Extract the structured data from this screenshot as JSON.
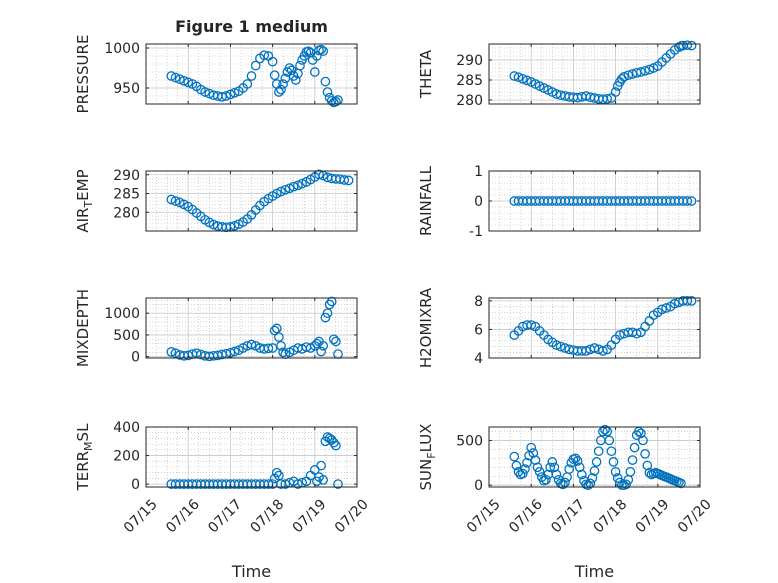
{
  "figure": {
    "title": "Figure 1 medium",
    "marker_color": "#0072bd"
  },
  "chart_data": [
    {
      "type": "scatter",
      "title": "Figure 1 medium",
      "ylabel": "PRESSURE",
      "xlabel": "",
      "x_tick_labels": [],
      "xlim": [
        0,
        5
      ],
      "ylim": [
        930,
        1005
      ],
      "yticks": [
        950,
        1000
      ],
      "y_tick_labels": [
        "950",
        "1000"
      ],
      "x": [
        0.6,
        0.7,
        0.8,
        0.9,
        1.0,
        1.1,
        1.2,
        1.3,
        1.4,
        1.5,
        1.6,
        1.7,
        1.8,
        1.9,
        2.0,
        2.1,
        2.2,
        2.3,
        2.4,
        2.5,
        2.6,
        2.7,
        2.8,
        2.9,
        3.0,
        3.05,
        3.1,
        3.15,
        3.2,
        3.25,
        3.3,
        3.35,
        3.4,
        3.45,
        3.5,
        3.55,
        3.6,
        3.65,
        3.7,
        3.75,
        3.8,
        3.85,
        3.9,
        3.95,
        4.0,
        4.05,
        4.1,
        4.15,
        4.2,
        4.25,
        4.3,
        4.35,
        4.4,
        4.45,
        4.5,
        4.55
      ],
      "y": [
        965,
        963,
        961,
        959,
        957,
        955,
        952,
        948,
        945,
        943,
        941,
        940,
        939,
        940,
        942,
        944,
        946,
        950,
        955,
        965,
        978,
        987,
        991,
        990,
        983,
        966,
        955,
        945,
        948,
        955,
        962,
        970,
        975,
        972,
        965,
        960,
        968,
        978,
        985,
        990,
        995,
        996,
        994,
        985,
        970,
        990,
        997,
        998,
        996,
        958,
        945,
        938,
        934,
        932,
        933,
        935
      ]
    },
    {
      "type": "scatter",
      "ylabel": "THETA",
      "xlabel": "",
      "x_tick_labels": [],
      "xlim": [
        0,
        5
      ],
      "ylim": [
        279,
        294
      ],
      "yticks": [
        280,
        285,
        290
      ],
      "y_tick_labels": [
        "280",
        "285",
        "290"
      ],
      "x": [
        0.6,
        0.7,
        0.8,
        0.9,
        1.0,
        1.1,
        1.2,
        1.3,
        1.4,
        1.5,
        1.6,
        1.7,
        1.8,
        1.9,
        2.0,
        2.1,
        2.2,
        2.3,
        2.4,
        2.5,
        2.6,
        2.7,
        2.8,
        2.9,
        3.0,
        3.05,
        3.1,
        3.15,
        3.2,
        3.3,
        3.4,
        3.5,
        3.6,
        3.7,
        3.8,
        3.9,
        4.0,
        4.1,
        4.2,
        4.3,
        4.4,
        4.5,
        4.55,
        4.6,
        4.7,
        4.8
      ],
      "y": [
        286,
        285.7,
        285.3,
        284.9,
        284.5,
        284,
        283.5,
        283,
        282.5,
        282,
        281.5,
        281.2,
        281,
        280.8,
        280.7,
        280.6,
        280.8,
        281,
        280.7,
        280.5,
        280.3,
        280.2,
        280.3,
        280.5,
        282,
        283.5,
        284.5,
        285.3,
        285.8,
        286.2,
        286.5,
        286.8,
        287,
        287.3,
        287.6,
        288,
        288.5,
        289.5,
        290.5,
        291.5,
        292.5,
        293.2,
        293.5,
        293.6,
        293.7,
        293.6
      ]
    },
    {
      "type": "scatter",
      "ylabel": "AIR_TEMP",
      "xlabel": "",
      "x_tick_labels": [],
      "xlim": [
        0,
        5
      ],
      "ylim": [
        275,
        291
      ],
      "yticks": [
        280,
        285,
        290
      ],
      "y_tick_labels": [
        "280",
        "285",
        "290"
      ],
      "x": [
        0.6,
        0.7,
        0.8,
        0.9,
        1.0,
        1.1,
        1.2,
        1.3,
        1.4,
        1.5,
        1.6,
        1.7,
        1.8,
        1.9,
        2.0,
        2.1,
        2.2,
        2.3,
        2.4,
        2.5,
        2.6,
        2.7,
        2.8,
        2.9,
        3.0,
        3.1,
        3.2,
        3.3,
        3.4,
        3.5,
        3.6,
        3.7,
        3.8,
        3.9,
        4.0,
        4.1,
        4.2,
        4.3,
        4.4,
        4.5,
        4.6,
        4.7,
        4.8
      ],
      "y": [
        283.4,
        283,
        282.6,
        282.1,
        281.5,
        280.7,
        279.8,
        278.9,
        278,
        277.3,
        276.7,
        276.3,
        276.1,
        276,
        276.1,
        276.4,
        276.8,
        277.4,
        278.2,
        279.3,
        280.6,
        281.8,
        282.8,
        283.6,
        284.3,
        285,
        285.5,
        286,
        286.4,
        286.8,
        287.2,
        287.6,
        288.1,
        288.7,
        289.4,
        290.1,
        289.8,
        289.3,
        289,
        288.9,
        288.8,
        288.6,
        288.5
      ]
    },
    {
      "type": "scatter",
      "ylabel": "RAINFALL",
      "xlabel": "",
      "x_tick_labels": [],
      "xlim": [
        0,
        5
      ],
      "ylim": [
        -1,
        1
      ],
      "yticks": [
        -1,
        0,
        1
      ],
      "y_tick_labels": [
        "-1",
        "0",
        "1"
      ],
      "x": [
        0.6,
        0.7,
        0.8,
        0.9,
        1.0,
        1.1,
        1.2,
        1.3,
        1.4,
        1.5,
        1.6,
        1.7,
        1.8,
        1.9,
        2.0,
        2.1,
        2.2,
        2.3,
        2.4,
        2.5,
        2.6,
        2.7,
        2.8,
        2.9,
        3.0,
        3.1,
        3.2,
        3.3,
        3.4,
        3.5,
        3.6,
        3.7,
        3.8,
        3.9,
        4.0,
        4.1,
        4.2,
        4.3,
        4.4,
        4.5,
        4.6,
        4.7,
        4.8
      ],
      "y": [
        0,
        0,
        0,
        0,
        0,
        0,
        0,
        0,
        0,
        0,
        0,
        0,
        0,
        0,
        0,
        0,
        0,
        0,
        0,
        0,
        0,
        0,
        0,
        0,
        0,
        0,
        0,
        0,
        0,
        0,
        0,
        0,
        0,
        0,
        0,
        0,
        0,
        0,
        0,
        0,
        0,
        0,
        0
      ]
    },
    {
      "type": "scatter",
      "ylabel": "MIXDEPTH",
      "xlabel": "",
      "x_tick_labels": [],
      "xlim": [
        0,
        5
      ],
      "ylim": [
        -30,
        1350
      ],
      "yticks": [
        0,
        500,
        1000
      ],
      "y_tick_labels": [
        "0",
        "500",
        "1000"
      ],
      "x": [
        0.6,
        0.7,
        0.8,
        0.9,
        1.0,
        1.1,
        1.2,
        1.3,
        1.4,
        1.5,
        1.6,
        1.7,
        1.8,
        1.9,
        2.0,
        2.1,
        2.2,
        2.3,
        2.4,
        2.5,
        2.6,
        2.7,
        2.8,
        2.9,
        3.0,
        3.05,
        3.1,
        3.15,
        3.2,
        3.25,
        3.3,
        3.4,
        3.5,
        3.6,
        3.7,
        3.8,
        3.9,
        4.0,
        4.05,
        4.1,
        4.15,
        4.2,
        4.25,
        4.3,
        4.35,
        4.4,
        4.45,
        4.5,
        4.55
      ],
      "y": [
        110,
        80,
        40,
        20,
        30,
        60,
        80,
        50,
        20,
        10,
        20,
        30,
        50,
        70,
        90,
        120,
        150,
        200,
        250,
        280,
        250,
        200,
        180,
        190,
        200,
        600,
        650,
        450,
        250,
        100,
        60,
        100,
        150,
        200,
        180,
        220,
        200,
        250,
        300,
        350,
        120,
        250,
        900,
        1000,
        1200,
        1270,
        400,
        350,
        60
      ]
    },
    {
      "type": "scatter",
      "ylabel": "H2OMIXRA",
      "xlabel": "",
      "x_tick_labels": [],
      "xlim": [
        0,
        5
      ],
      "ylim": [
        4,
        8.2
      ],
      "yticks": [
        4,
        6,
        8
      ],
      "y_tick_labels": [
        "4",
        "6",
        "8"
      ],
      "x": [
        0.6,
        0.7,
        0.8,
        0.9,
        1.0,
        1.1,
        1.2,
        1.3,
        1.4,
        1.5,
        1.6,
        1.7,
        1.8,
        1.9,
        2.0,
        2.1,
        2.2,
        2.3,
        2.4,
        2.5,
        2.6,
        2.7,
        2.8,
        2.9,
        3.0,
        3.1,
        3.2,
        3.3,
        3.4,
        3.5,
        3.6,
        3.7,
        3.8,
        3.9,
        4.0,
        4.1,
        4.2,
        4.3,
        4.4,
        4.5,
        4.6,
        4.7,
        4.8
      ],
      "y": [
        5.6,
        5.9,
        6.2,
        6.3,
        6.3,
        6.2,
        5.9,
        5.6,
        5.3,
        5.1,
        4.9,
        4.8,
        4.7,
        4.6,
        4.55,
        4.5,
        4.5,
        4.5,
        4.6,
        4.7,
        4.6,
        4.5,
        4.6,
        4.9,
        5.3,
        5.6,
        5.7,
        5.8,
        5.8,
        5.7,
        5.8,
        6.2,
        6.6,
        7,
        7.2,
        7.4,
        7.5,
        7.6,
        7.8,
        7.9,
        8,
        8,
        8
      ]
    },
    {
      "type": "scatter",
      "ylabel": "TERR_MSL",
      "xlabel": "Time",
      "x_tick_labels": [
        "07/15",
        "07/16",
        "07/17",
        "07/18",
        "07/19",
        "07/20"
      ],
      "xlim": [
        0,
        5
      ],
      "ylim": [
        -20,
        400
      ],
      "yticks": [
        0,
        200,
        400
      ],
      "y_tick_labels": [
        "0",
        "200",
        "400"
      ],
      "x": [
        0.6,
        0.7,
        0.8,
        0.9,
        1.0,
        1.1,
        1.2,
        1.3,
        1.4,
        1.5,
        1.6,
        1.7,
        1.8,
        1.9,
        2.0,
        2.1,
        2.2,
        2.3,
        2.4,
        2.5,
        2.6,
        2.7,
        2.8,
        2.9,
        3.0,
        3.05,
        3.1,
        3.15,
        3.2,
        3.3,
        3.4,
        3.5,
        3.6,
        3.7,
        3.8,
        3.9,
        4.0,
        4.05,
        4.1,
        4.15,
        4.2,
        4.25,
        4.3,
        4.35,
        4.4,
        4.45,
        4.5,
        4.55
      ],
      "y": [
        0,
        0,
        0,
        0,
        0,
        0,
        0,
        0,
        0,
        0,
        0,
        0,
        0,
        0,
        0,
        0,
        0,
        0,
        0,
        0,
        0,
        0,
        0,
        0,
        0,
        40,
        80,
        60,
        0,
        0,
        10,
        20,
        0,
        10,
        20,
        60,
        100,
        20,
        50,
        130,
        30,
        300,
        330,
        320,
        310,
        290,
        270,
        0
      ]
    },
    {
      "type": "scatter",
      "ylabel": "SUN_FLUX",
      "xlabel": "Time",
      "x_tick_labels": [
        "07/15",
        "07/16",
        "07/17",
        "07/18",
        "07/19",
        "07/20"
      ],
      "xlim": [
        0,
        5
      ],
      "ylim": [
        -20,
        650
      ],
      "yticks": [
        0,
        500
      ],
      "y_tick_labels": [
        "0",
        "500"
      ],
      "x": [
        0.6,
        0.65,
        0.7,
        0.75,
        0.8,
        0.85,
        0.9,
        0.95,
        1.0,
        1.05,
        1.1,
        1.15,
        1.2,
        1.25,
        1.3,
        1.35,
        1.4,
        1.45,
        1.5,
        1.55,
        1.6,
        1.65,
        1.7,
        1.75,
        1.8,
        1.85,
        1.9,
        1.95,
        2.0,
        2.05,
        2.1,
        2.15,
        2.2,
        2.25,
        2.3,
        2.35,
        2.4,
        2.45,
        2.5,
        2.55,
        2.6,
        2.65,
        2.7,
        2.75,
        2.8,
        2.85,
        2.9,
        2.95,
        3.0,
        3.05,
        3.1,
        3.15,
        3.2,
        3.25,
        3.3,
        3.35,
        3.4,
        3.45,
        3.5,
        3.55,
        3.6,
        3.65,
        3.7,
        3.75,
        3.8,
        3.85,
        3.9,
        3.95,
        4.0,
        4.05,
        4.1,
        4.15,
        4.2,
        4.25,
        4.3,
        4.35,
        4.4,
        4.45,
        4.5,
        4.55
      ],
      "y": [
        320,
        220,
        150,
        120,
        130,
        180,
        250,
        330,
        420,
        360,
        280,
        200,
        150,
        90,
        50,
        60,
        120,
        200,
        260,
        200,
        120,
        60,
        20,
        10,
        30,
        90,
        180,
        250,
        290,
        300,
        270,
        200,
        120,
        50,
        10,
        0,
        20,
        80,
        160,
        260,
        380,
        500,
        600,
        620,
        600,
        500,
        380,
        260,
        150,
        80,
        30,
        0,
        0,
        10,
        60,
        150,
        280,
        420,
        560,
        600,
        580,
        500,
        350,
        220,
        140,
        120,
        130,
        140,
        130,
        120,
        110,
        100,
        90,
        80,
        70,
        60,
        50,
        40,
        30,
        20
      ]
    }
  ]
}
